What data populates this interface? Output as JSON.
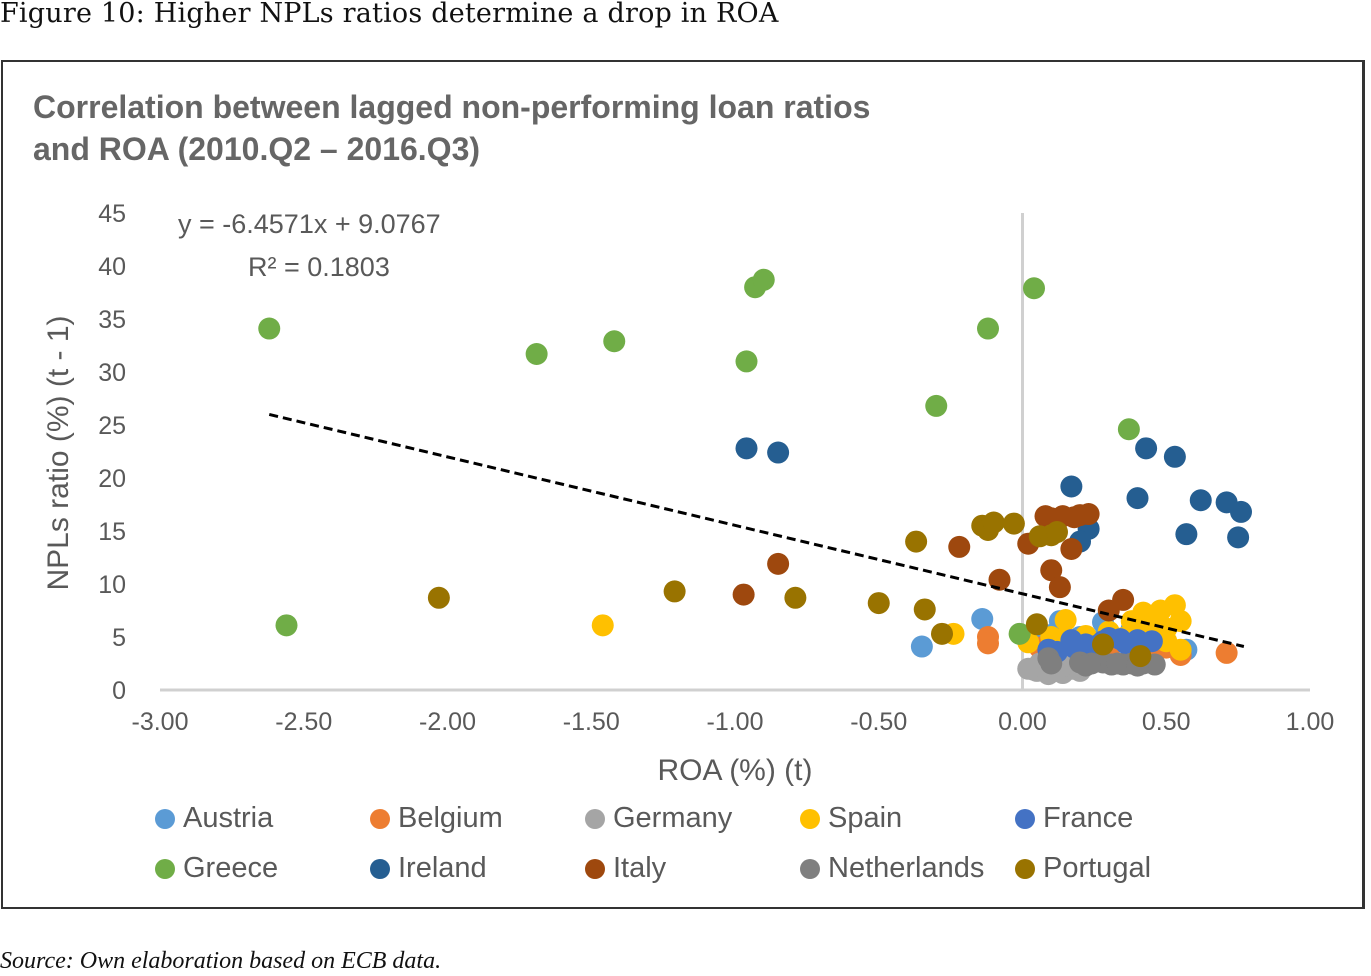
{
  "figure_title": "Figure 10: Higher NPLs ratios determine a drop in ROA",
  "source": "Source: Own elaboration based on ECB data.",
  "chart_data": {
    "type": "scatter",
    "title_lines": [
      "Correlation between lagged non-performing loan ratios",
      "and ROA (2010.Q2 – 2016.Q3)"
    ],
    "xlabel": "ROA (%) (t)",
    "ylabel": "NPLs ratio (%) (t - 1)",
    "xlim": [
      -3.0,
      1.0
    ],
    "ylim": [
      0,
      45
    ],
    "x_ticks": [
      "-3.00",
      "-2.50",
      "-2.00",
      "-1.50",
      "-1.00",
      "-0.50",
      "0.00",
      "0.50",
      "1.00"
    ],
    "y_ticks": [
      "0",
      "5",
      "10",
      "15",
      "20",
      "25",
      "30",
      "35",
      "40",
      "45"
    ],
    "grid": false,
    "zero_line": true,
    "legend_position": "bottom",
    "trendline": {
      "type": "linear",
      "slope": -6.4571,
      "intercept": 9.0767,
      "x_range": [
        -2.62,
        0.77
      ],
      "equation_label": "y = -6.4571x + 9.0767",
      "r2_label": "R² = 0.1803",
      "color": "#000000"
    },
    "series": [
      {
        "name": "Austria",
        "color": "#5B9BD5",
        "points": [
          [
            -0.35,
            4.1
          ],
          [
            -0.14,
            6.7
          ],
          [
            0.13,
            6.5
          ],
          [
            0.1,
            5.2
          ],
          [
            0.28,
            6.4
          ],
          [
            0.38,
            5.8
          ],
          [
            0.2,
            5.0
          ],
          [
            0.12,
            4.3
          ],
          [
            0.57,
            3.8
          ],
          [
            0.48,
            4.5
          ],
          [
            0.25,
            4.6
          ],
          [
            0.08,
            4.9
          ]
        ]
      },
      {
        "name": "Belgium",
        "color": "#ED7D31",
        "points": [
          [
            -0.12,
            5.0
          ],
          [
            -0.12,
            4.4
          ],
          [
            0.71,
            3.5
          ],
          [
            0.55,
            3.3
          ],
          [
            0.1,
            4.3
          ],
          [
            0.22,
            3.9
          ],
          [
            0.5,
            4.0
          ],
          [
            0.3,
            3.6
          ],
          [
            0.15,
            3.8
          ],
          [
            0.45,
            3.4
          ],
          [
            0.06,
            4.0
          ],
          [
            0.38,
            3.5
          ]
        ]
      },
      {
        "name": "Germany",
        "color": "#A5A5A5",
        "points": [
          [
            0.02,
            2.0
          ],
          [
            0.05,
            1.8
          ],
          [
            0.08,
            2.2
          ],
          [
            0.1,
            1.7
          ],
          [
            0.12,
            2.1
          ],
          [
            0.14,
            1.6
          ],
          [
            0.17,
            2.0
          ],
          [
            0.2,
            1.8
          ],
          [
            0.06,
            2.5
          ],
          [
            0.11,
            2.6
          ],
          [
            0.15,
            2.3
          ],
          [
            0.04,
            1.9
          ],
          [
            0.09,
            1.5
          ],
          [
            0.18,
            2.4
          ]
        ]
      },
      {
        "name": "Spain",
        "color": "#FFC000",
        "points": [
          [
            -1.46,
            6.1
          ],
          [
            -0.24,
            5.3
          ],
          [
            0.02,
            4.5
          ],
          [
            0.1,
            5.0
          ],
          [
            0.15,
            6.6
          ],
          [
            0.22,
            5.1
          ],
          [
            0.3,
            5.5
          ],
          [
            0.38,
            6.5
          ],
          [
            0.42,
            7.3
          ],
          [
            0.48,
            7.5
          ],
          [
            0.53,
            8.0
          ],
          [
            0.55,
            6.5
          ],
          [
            0.4,
            6.0
          ],
          [
            0.45,
            5.2
          ],
          [
            0.5,
            4.6
          ],
          [
            0.35,
            4.9
          ],
          [
            0.27,
            4.4
          ],
          [
            0.14,
            4.8
          ],
          [
            0.55,
            3.8
          ],
          [
            0.44,
            7.0
          ],
          [
            0.5,
            5.8
          ]
        ]
      },
      {
        "name": "France",
        "color": "#4472C4",
        "points": [
          [
            0.09,
            3.8
          ],
          [
            0.17,
            4.7
          ],
          [
            0.22,
            4.3
          ],
          [
            0.28,
            4.6
          ],
          [
            0.34,
            4.8
          ],
          [
            0.4,
            4.7
          ],
          [
            0.45,
            4.6
          ],
          [
            0.12,
            3.6
          ],
          [
            0.26,
            4.2
          ],
          [
            0.36,
            4.4
          ],
          [
            0.3,
            4.9
          ],
          [
            0.18,
            4.0
          ]
        ]
      },
      {
        "name": "Greece",
        "color": "#70AD47",
        "points": [
          [
            -2.62,
            34.1
          ],
          [
            -2.56,
            6.1
          ],
          [
            -1.69,
            31.7
          ],
          [
            -1.42,
            32.9
          ],
          [
            -0.96,
            31.0
          ],
          [
            -0.93,
            38.0
          ],
          [
            -0.9,
            38.7
          ],
          [
            -0.3,
            26.8
          ],
          [
            -0.12,
            34.1
          ],
          [
            0.04,
            37.9
          ],
          [
            0.37,
            24.6
          ],
          [
            -0.01,
            5.3
          ]
        ]
      },
      {
        "name": "Ireland",
        "color": "#255E91",
        "points": [
          [
            -0.96,
            22.8
          ],
          [
            -0.85,
            22.4
          ],
          [
            0.17,
            19.2
          ],
          [
            0.23,
            15.2
          ],
          [
            0.4,
            18.1
          ],
          [
            0.43,
            22.8
          ],
          [
            0.53,
            22.0
          ],
          [
            0.57,
            14.7
          ],
          [
            0.62,
            17.9
          ],
          [
            0.71,
            17.7
          ],
          [
            0.75,
            14.4
          ],
          [
            0.76,
            16.8
          ],
          [
            0.2,
            14.0
          ]
        ]
      },
      {
        "name": "Italy",
        "color": "#9E480E",
        "points": [
          [
            -0.85,
            11.9
          ],
          [
            -0.97,
            9.0
          ],
          [
            -0.22,
            13.5
          ],
          [
            -0.08,
            10.4
          ],
          [
            0.02,
            13.8
          ],
          [
            0.08,
            16.4
          ],
          [
            0.1,
            16.2
          ],
          [
            0.14,
            16.4
          ],
          [
            0.18,
            16.3
          ],
          [
            0.2,
            16.5
          ],
          [
            0.23,
            16.6
          ],
          [
            0.17,
            13.3
          ],
          [
            0.1,
            11.3
          ],
          [
            0.13,
            9.7
          ],
          [
            0.3,
            7.5
          ],
          [
            0.35,
            8.5
          ]
        ]
      },
      {
        "name": "Netherlands",
        "color": "#7F7F7F",
        "points": [
          [
            0.09,
            3.0
          ],
          [
            0.1,
            2.5
          ],
          [
            0.2,
            2.6
          ],
          [
            0.24,
            2.5
          ],
          [
            0.28,
            2.6
          ],
          [
            0.31,
            2.4
          ],
          [
            0.35,
            2.4
          ],
          [
            0.38,
            2.5
          ],
          [
            0.42,
            2.5
          ],
          [
            0.46,
            2.4
          ],
          [
            0.22,
            2.3
          ],
          [
            0.33,
            2.5
          ],
          [
            0.4,
            2.3
          ]
        ]
      },
      {
        "name": "Portugal",
        "color": "#997300",
        "points": [
          [
            -2.03,
            8.7
          ],
          [
            -1.21,
            9.3
          ],
          [
            -0.79,
            8.7
          ],
          [
            -0.5,
            8.2
          ],
          [
            -0.34,
            7.6
          ],
          [
            -0.37,
            14.0
          ],
          [
            -0.28,
            5.3
          ],
          [
            -0.14,
            15.5
          ],
          [
            -0.12,
            15.1
          ],
          [
            -0.1,
            15.8
          ],
          [
            -0.03,
            15.7
          ],
          [
            0.06,
            14.5
          ],
          [
            0.1,
            14.6
          ],
          [
            0.12,
            14.9
          ],
          [
            0.05,
            6.2
          ],
          [
            0.28,
            4.3
          ],
          [
            0.41,
            3.2
          ]
        ]
      }
    ]
  }
}
